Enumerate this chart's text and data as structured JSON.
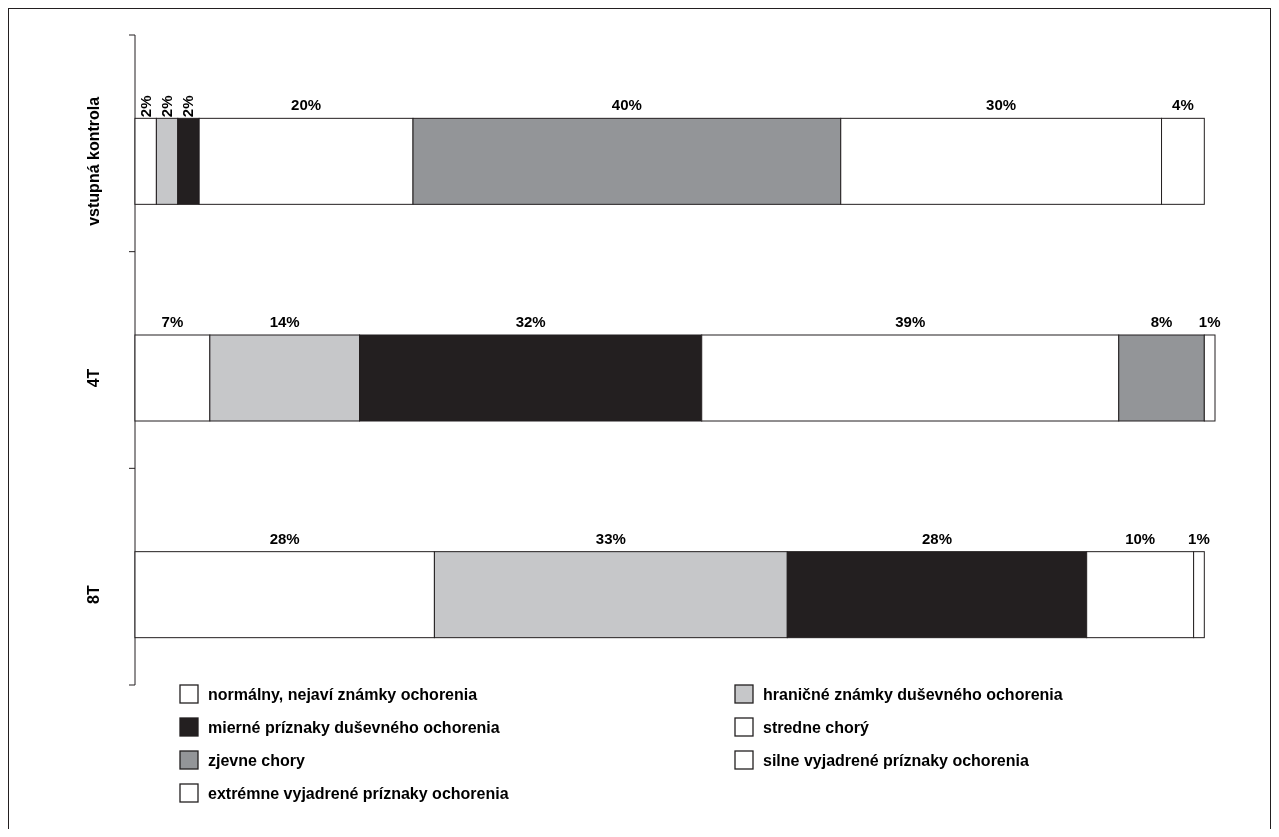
{
  "chart_data": {
    "type": "bar",
    "orientation": "horizontal",
    "stacked": true,
    "categories": [
      "vstupná kontrola",
      "4T",
      "8T"
    ],
    "legend": "bottom",
    "series": [
      {
        "name": "normálny, nejaví známky ochorenia",
        "color": "#ffffff",
        "values": [
          2,
          7,
          28
        ],
        "value_labels": [
          "2%",
          "7%",
          "28%"
        ]
      },
      {
        "name": "hraničné známky duševného ochorenia",
        "color": "#c6c7c9",
        "values": [
          2,
          14,
          33
        ],
        "value_labels": [
          "2%",
          "14%",
          "33%"
        ]
      },
      {
        "name": "mierné príznaky duševného ochorenia",
        "color": "#231f20",
        "values": [
          2,
          32,
          28
        ],
        "value_labels": [
          "2%",
          "32%",
          "28%"
        ]
      },
      {
        "name": "stredne chorý",
        "color": "#ffffff",
        "values": [
          20,
          39,
          10
        ],
        "value_labels": [
          "20%",
          "39%",
          "10%"
        ]
      },
      {
        "name": "zjevne chory",
        "color": "#939598",
        "values": [
          40,
          8,
          null
        ],
        "value_labels": [
          "40%",
          "8%",
          null
        ]
      },
      {
        "name": "silne vyjadrené príznaky ochorenia",
        "color": "#ffffff",
        "values": [
          30,
          1,
          1
        ],
        "value_labels": [
          "30%",
          "1%",
          "1%"
        ]
      },
      {
        "name": "extrémne vyjadrené príznaky ochorenia",
        "color": "#ffffff",
        "values": [
          4,
          null,
          null
        ],
        "value_labels": [
          "4%",
          null,
          null
        ]
      }
    ]
  }
}
